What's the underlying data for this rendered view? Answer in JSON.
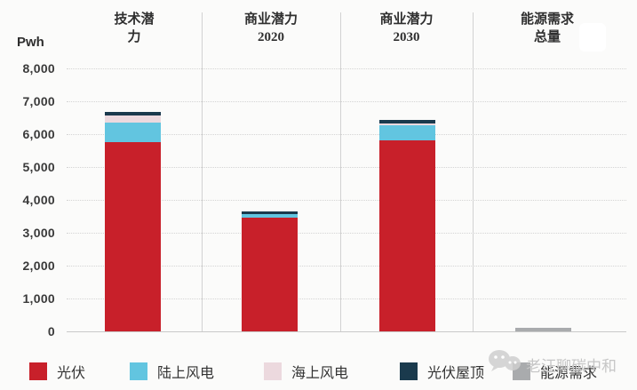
{
  "page": {
    "background": "#fbfbfa"
  },
  "y_axis": {
    "unit_label": "Pwh",
    "tick_labels": [
      "8,000",
      "7,000",
      "6,000",
      "5,000",
      "4,000",
      "3,000",
      "2,000",
      "1,000",
      "0"
    ],
    "tick_values": [
      8000,
      7000,
      6000,
      5000,
      4000,
      3000,
      2000,
      1000,
      0
    ]
  },
  "headers": [
    {
      "line1": "技术潜",
      "line2": "力"
    },
    {
      "line1": "商业潜力",
      "line2": "2020"
    },
    {
      "line1": "商业潜力",
      "line2": "2030"
    },
    {
      "line1": "能源需求",
      "line2": "总量"
    }
  ],
  "chart_data": {
    "type": "bar",
    "stacked": true,
    "title": "",
    "ylabel": "Pwh",
    "xlabel": "",
    "ylim": [
      0,
      8000
    ],
    "ytick_step": 1000,
    "grid": "horizontal-dotted",
    "legend_position": "bottom",
    "categories": [
      "技术潜力",
      "商业潜力 2020",
      "商业潜力 2030",
      "能源需求总量"
    ],
    "series": [
      {
        "name": "光伏",
        "color": "#c8202a",
        "values": [
          5750,
          3450,
          5800,
          0
        ]
      },
      {
        "name": "陆上风电",
        "color": "#62c5e0",
        "values": [
          590,
          110,
          500,
          0
        ]
      },
      {
        "name": "海上风电",
        "color": "#ecd9de",
        "values": [
          230,
          0,
          20,
          0
        ]
      },
      {
        "name": "光伏屋顶",
        "color": "#1a3a4d",
        "values": [
          110,
          80,
          110,
          0
        ]
      },
      {
        "name": "能源需求",
        "color": "#a9abad",
        "values": [
          0,
          0,
          0,
          120
        ]
      }
    ],
    "category_totals": [
      6680,
      3640,
      6430,
      120
    ]
  },
  "legend": {
    "items": [
      {
        "label": "光伏",
        "color": "#c8202a"
      },
      {
        "label": "陆上风电",
        "color": "#62c5e0"
      },
      {
        "label": "海上风电",
        "color": "#ecd9de"
      },
      {
        "label": "光伏屋顶",
        "color": "#1a3a4d"
      },
      {
        "label": "能源需求",
        "color": "#a9abad"
      }
    ]
  },
  "watermark": {
    "text": "老汪聊碳中和",
    "icon": "wechat-icon",
    "color": "#c6c6c6"
  }
}
